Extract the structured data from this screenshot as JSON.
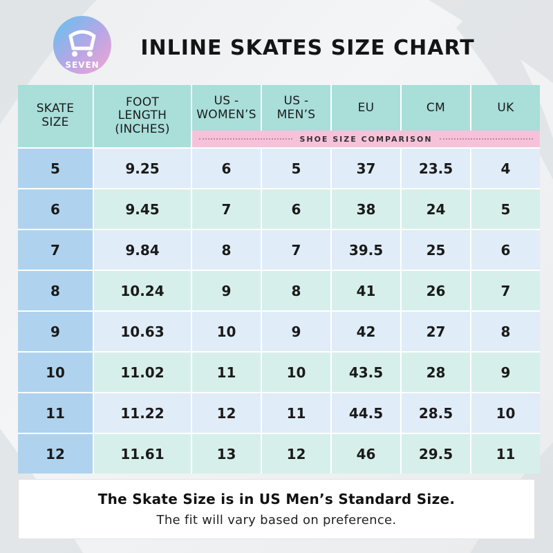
{
  "title": "INLINE SKATES SIZE CHART",
  "logo": {
    "text": "SEVEN",
    "icon": "skate-logo-icon"
  },
  "colors": {
    "header": "#a9ded9",
    "size_col": "#afd3ee",
    "row_blue": "#e0ecf8",
    "row_green": "#d7efea",
    "comparison_band": "#f6c2da"
  },
  "table": {
    "headers": {
      "skate_size": [
        "SKATE",
        "SIZE"
      ],
      "foot_length": [
        "FOOT",
        "LENGTH",
        "(INCHES)"
      ],
      "us_womens": [
        "US -",
        "WOMEN’S"
      ],
      "us_mens": [
        "US -",
        "MEN’S"
      ],
      "eu": "EU",
      "cm": "CM",
      "uk": "UK"
    },
    "comparison_label": "SHOE SIZE COMPARISON",
    "rows": [
      [
        "5",
        "9.25",
        "6",
        "5",
        "37",
        "23.5",
        "4"
      ],
      [
        "6",
        "9.45",
        "7",
        "6",
        "38",
        "24",
        "5"
      ],
      [
        "7",
        "9.84",
        "8",
        "7",
        "39.5",
        "25",
        "6"
      ],
      [
        "8",
        "10.24",
        "9",
        "8",
        "41",
        "26",
        "7"
      ],
      [
        "9",
        "10.63",
        "10",
        "9",
        "42",
        "27",
        "8"
      ],
      [
        "10",
        "11.02",
        "11",
        "10",
        "43.5",
        "28",
        "9"
      ],
      [
        "11",
        "11.22",
        "12",
        "11",
        "44.5",
        "28.5",
        "10"
      ],
      [
        "12",
        "11.61",
        "13",
        "12",
        "46",
        "29.5",
        "11"
      ]
    ]
  },
  "note": {
    "main": "The Skate Size is in US Men’s Standard Size.",
    "sub": "The fit will vary based on preference."
  }
}
